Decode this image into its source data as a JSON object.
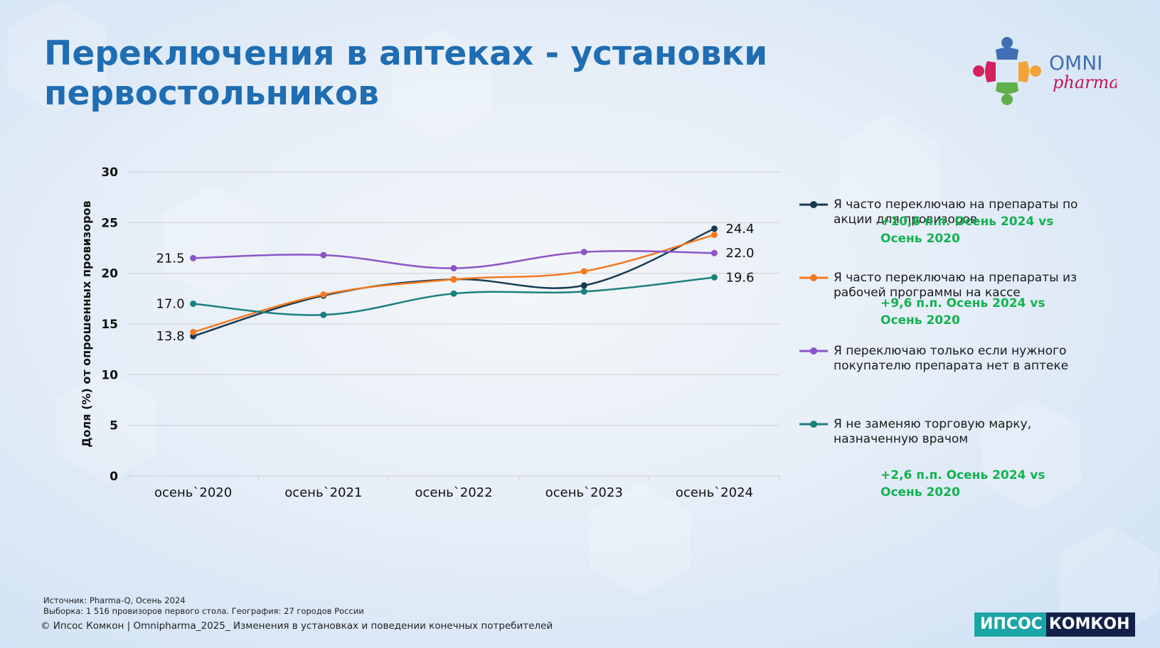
{
  "title": "Переключения в аптеках - установки первостольников",
  "logo": {
    "text_top": "OMNI",
    "text_bottom": "pharma"
  },
  "chart_data": {
    "type": "line",
    "categories": [
      "осень`2020",
      "осень`2021",
      "осень`2022",
      "осень`2023",
      "осень`2024"
    ],
    "ylabel": "Доля (%) от опрошенных провизоров",
    "ylim": [
      0,
      30
    ],
    "yticks": [
      0,
      5,
      10,
      15,
      20,
      25,
      30
    ],
    "grid": true,
    "legend_position": "right",
    "series": [
      {
        "name": "Я часто переключаю на препараты по акции для провизоров",
        "color": "#163a52",
        "values": [
          13.8,
          17.8,
          19.4,
          18.8,
          24.4
        ]
      },
      {
        "name": "Я часто переключаю на препараты из рабочей программы на кассе",
        "color": "#f47a1f",
        "values": [
          14.2,
          17.9,
          19.4,
          20.2,
          23.8
        ]
      },
      {
        "name": "Я переключаю только если нужного покупателю препарата нет в аптеке",
        "color": "#8b55c8",
        "values": [
          21.5,
          21.8,
          20.5,
          22.1,
          22.0
        ]
      },
      {
        "name": "Я не заменяю торговую марку, назначенную врачом",
        "color": "#1a8080",
        "values": [
          17.0,
          15.9,
          18.0,
          18.2,
          19.6
        ]
      }
    ],
    "data_labels": {
      "left": [
        {
          "series": 2,
          "text": "21.5"
        },
        {
          "series": 3,
          "text": "17.0"
        },
        {
          "series": 0,
          "text": "13.8"
        }
      ],
      "right": [
        {
          "series": 0,
          "text": "24.4"
        },
        {
          "series": 2,
          "text": "22.0"
        },
        {
          "series": 3,
          "text": "19.6"
        }
      ]
    },
    "annotations": [
      "+10,6 п.п. Осень 2024 vs Осень 2020",
      "+9,6 п.п. Осень 2024 vs Осень 2020",
      "+2,6 п.п. Осень 2024 vs Осень 2020"
    ]
  },
  "footer": {
    "source": "Источник: Pharma-Q, Осень 2024",
    "sample": "Выборка: 1 516 провизоров первого стола. География: 27 городов России",
    "copyright": "© Ипсос Комкон | Omnipharma_2025_ Изменения в установках и поведении конечных потребителей"
  },
  "brand": {
    "part1": "ИПСОС",
    "part2": "КОМКОН"
  }
}
